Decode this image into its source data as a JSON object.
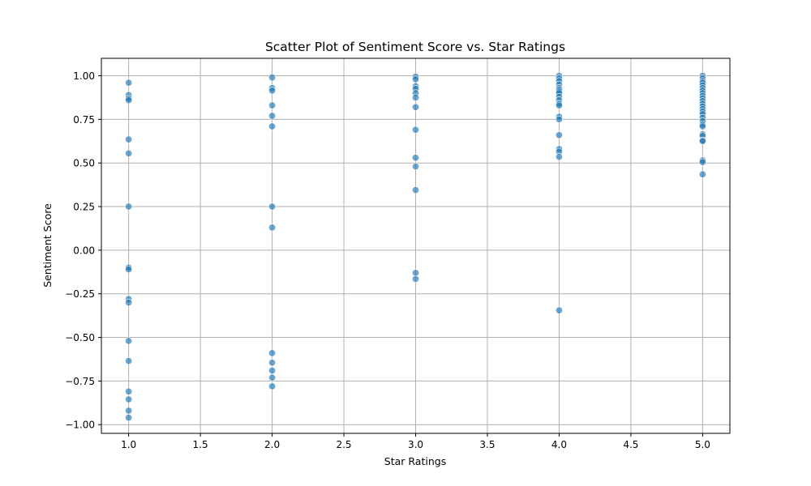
{
  "chart_data": {
    "type": "scatter",
    "title": "Scatter Plot of Sentiment Score vs. Star Ratings",
    "xlabel": "Star Ratings",
    "ylabel": "Sentiment Score",
    "xlim": [
      0.81,
      5.19
    ],
    "ylim": [
      -1.05,
      1.1
    ],
    "xticks": [
      1.0,
      1.5,
      2.0,
      2.5,
      3.0,
      3.5,
      4.0,
      4.5,
      5.0
    ],
    "xtick_labels": [
      "1.0",
      "1.5",
      "2.0",
      "2.5",
      "3.0",
      "3.5",
      "4.0",
      "4.5",
      "5.0"
    ],
    "yticks": [
      1.0,
      0.75,
      0.5,
      0.25,
      0.0,
      -0.25,
      -0.5,
      -0.75,
      -1.0
    ],
    "ytick_labels": [
      "1.00",
      "0.75",
      "0.50",
      "0.25",
      "0.00",
      "−0.25",
      "−0.50",
      "−0.75",
      "−1.00"
    ],
    "grid": true,
    "point_color": "#1f77b4",
    "point_edge_color": "#ffffff",
    "point_alpha": 0.65,
    "points": [
      {
        "x": 1,
        "y": 0.96
      },
      {
        "x": 1,
        "y": 0.89
      },
      {
        "x": 1,
        "y": 0.87
      },
      {
        "x": 1,
        "y": 0.86
      },
      {
        "x": 1,
        "y": 0.635
      },
      {
        "x": 1,
        "y": 0.555
      },
      {
        "x": 1,
        "y": 0.25
      },
      {
        "x": 1,
        "y": -0.1
      },
      {
        "x": 1,
        "y": -0.11
      },
      {
        "x": 1,
        "y": -0.28
      },
      {
        "x": 1,
        "y": -0.3
      },
      {
        "x": 1,
        "y": -0.52
      },
      {
        "x": 1,
        "y": -0.635
      },
      {
        "x": 1,
        "y": -0.81
      },
      {
        "x": 1,
        "y": -0.855
      },
      {
        "x": 1,
        "y": -0.92
      },
      {
        "x": 1,
        "y": -0.96
      },
      {
        "x": 2,
        "y": 0.99
      },
      {
        "x": 2,
        "y": 0.93
      },
      {
        "x": 2,
        "y": 0.915
      },
      {
        "x": 2,
        "y": 0.83
      },
      {
        "x": 2,
        "y": 0.77
      },
      {
        "x": 2,
        "y": 0.71
      },
      {
        "x": 2,
        "y": 0.25
      },
      {
        "x": 2,
        "y": 0.13
      },
      {
        "x": 2,
        "y": -0.59
      },
      {
        "x": 2,
        "y": -0.645
      },
      {
        "x": 2,
        "y": -0.69
      },
      {
        "x": 2,
        "y": -0.73
      },
      {
        "x": 2,
        "y": -0.78
      },
      {
        "x": 3,
        "y": 0.995
      },
      {
        "x": 3,
        "y": 0.98
      },
      {
        "x": 3,
        "y": 0.94
      },
      {
        "x": 3,
        "y": 0.925
      },
      {
        "x": 3,
        "y": 0.9
      },
      {
        "x": 3,
        "y": 0.875
      },
      {
        "x": 3,
        "y": 0.82
      },
      {
        "x": 3,
        "y": 0.69
      },
      {
        "x": 3,
        "y": 0.53
      },
      {
        "x": 3,
        "y": 0.48
      },
      {
        "x": 3,
        "y": 0.345
      },
      {
        "x": 3,
        "y": -0.13
      },
      {
        "x": 3,
        "y": -0.165
      },
      {
        "x": 4,
        "y": 1.0
      },
      {
        "x": 4,
        "y": 0.985
      },
      {
        "x": 4,
        "y": 0.97
      },
      {
        "x": 4,
        "y": 0.95
      },
      {
        "x": 4,
        "y": 0.93
      },
      {
        "x": 4,
        "y": 0.92
      },
      {
        "x": 4,
        "y": 0.91
      },
      {
        "x": 4,
        "y": 0.9
      },
      {
        "x": 4,
        "y": 0.88
      },
      {
        "x": 4,
        "y": 0.86
      },
      {
        "x": 4,
        "y": 0.84
      },
      {
        "x": 4,
        "y": 0.83
      },
      {
        "x": 4,
        "y": 0.765
      },
      {
        "x": 4,
        "y": 0.75
      },
      {
        "x": 4,
        "y": 0.66
      },
      {
        "x": 4,
        "y": 0.58
      },
      {
        "x": 4,
        "y": 0.565
      },
      {
        "x": 4,
        "y": 0.535
      },
      {
        "x": 4,
        "y": -0.345
      },
      {
        "x": 5,
        "y": 1.0
      },
      {
        "x": 5,
        "y": 0.985
      },
      {
        "x": 5,
        "y": 0.97
      },
      {
        "x": 5,
        "y": 0.96
      },
      {
        "x": 5,
        "y": 0.945
      },
      {
        "x": 5,
        "y": 0.93
      },
      {
        "x": 5,
        "y": 0.915
      },
      {
        "x": 5,
        "y": 0.9
      },
      {
        "x": 5,
        "y": 0.885
      },
      {
        "x": 5,
        "y": 0.87
      },
      {
        "x": 5,
        "y": 0.855
      },
      {
        "x": 5,
        "y": 0.84
      },
      {
        "x": 5,
        "y": 0.825
      },
      {
        "x": 5,
        "y": 0.81
      },
      {
        "x": 5,
        "y": 0.795
      },
      {
        "x": 5,
        "y": 0.78
      },
      {
        "x": 5,
        "y": 0.76
      },
      {
        "x": 5,
        "y": 0.74
      },
      {
        "x": 5,
        "y": 0.72
      },
      {
        "x": 5,
        "y": 0.71
      },
      {
        "x": 5,
        "y": 0.665
      },
      {
        "x": 5,
        "y": 0.655
      },
      {
        "x": 5,
        "y": 0.63
      },
      {
        "x": 5,
        "y": 0.625
      },
      {
        "x": 5,
        "y": 0.515
      },
      {
        "x": 5,
        "y": 0.505
      },
      {
        "x": 5,
        "y": 0.435
      }
    ]
  }
}
